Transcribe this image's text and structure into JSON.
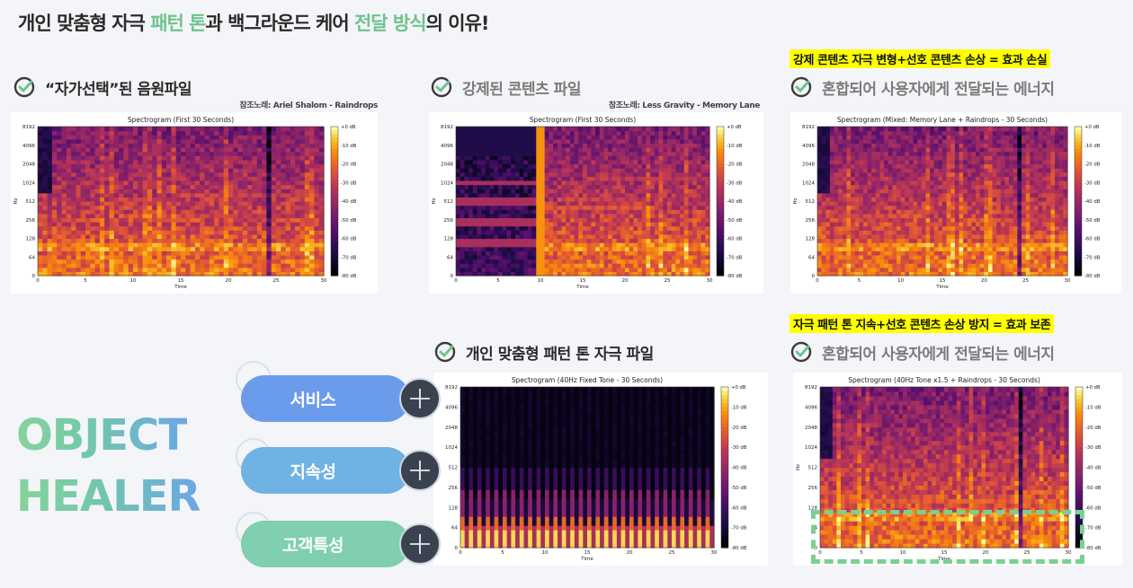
{
  "title": {
    "part1": "개인 맞춤형 자극 ",
    "accent1": "패턴 톤",
    "part2": "과 백그라운드 케어 ",
    "accent2": "전달 방식",
    "part3": "의 이유!"
  },
  "brand": {
    "line1": "OBJECT",
    "line2": "HEALER"
  },
  "pills": [
    {
      "label": "서비스",
      "color": "#6b9cec"
    },
    {
      "label": "지속성",
      "color": "#6fb2e4"
    },
    {
      "label": "고객특성",
      "color": "#7fcfb0"
    }
  ],
  "sections": {
    "chosen": {
      "caption": "“자가선택”된 음원파일",
      "ref": "참조노래: Ariel Shalom - Raindrops"
    },
    "forced": {
      "caption": "강제된 콘텐츠 파일",
      "ref": "참조노래: Less Gravity - Memory Lane"
    },
    "mixed_top": {
      "highlight": "강제 콘텐츠 자극 변형+선호 콘텐츠 손상 = 효과 손실",
      "caption": "혼합되어 사용자에게 전달되는 에너지"
    },
    "tone": {
      "caption": "개인 맞춤형 패턴 톤 자극 파일"
    },
    "mixed_bottom": {
      "highlight": "자극 패턴 톤 지속+선호 콘텐츠 손상 방지 = 효과 보존",
      "caption": "혼합되어 사용자에게 전달되는 에너지"
    }
  },
  "spectrograms": [
    {
      "id": "chosen",
      "title": "Spectrogram (First 30 Seconds)"
    },
    {
      "id": "forced",
      "title": "Spectrogram (First 30 Seconds)"
    },
    {
      "id": "mixed_top",
      "title": "Spectrogram (Mixed: Memory Lane + Raindrops - 30 Seconds)"
    },
    {
      "id": "tone",
      "title": "Spectrogram (40Hz Fixed Tone - 30 Seconds)"
    },
    {
      "id": "mixed_bottom",
      "title": "Spectrogram (40Hz Tone x1.5 + Raindrops - 30 Seconds)"
    }
  ],
  "axis": {
    "y_label": "Hz",
    "y_ticks": [
      "8192",
      "4096",
      "2048",
      "1024",
      "512",
      "256",
      "128",
      "64",
      "0"
    ],
    "x_label": "Time",
    "x_ticks": [
      "0",
      "5",
      "10",
      "15",
      "20",
      "25",
      "30"
    ],
    "colorbar_ticks": [
      "+0 dB",
      "-10 dB",
      "-20 dB",
      "-30 dB",
      "-40 dB",
      "-50 dB",
      "-60 dB",
      "-70 dB",
      "-80 dB"
    ]
  },
  "colors": {
    "accent_green": "#6fc28f",
    "highlight_yellow": "#ffff00",
    "dashed_border": "#7ccf93",
    "plus_button": "#39424e"
  }
}
